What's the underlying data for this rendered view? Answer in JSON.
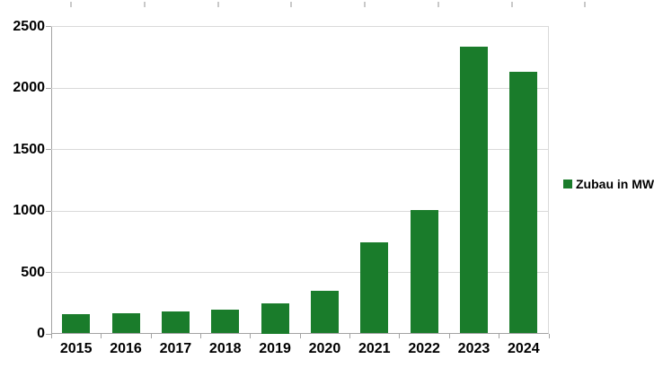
{
  "chart_data": {
    "type": "bar",
    "categories": [
      "2015",
      "2016",
      "2017",
      "2018",
      "2019",
      "2020",
      "2021",
      "2022",
      "2023",
      "2024"
    ],
    "series": [
      {
        "name": "Zubau in MW",
        "values": [
          160,
          170,
          185,
          195,
          250,
          350,
          745,
          1010,
          2335,
          2130
        ],
        "color": "#1a7c2b"
      }
    ],
    "xlabel": "",
    "ylabel": "",
    "ylim": [
      0,
      2500
    ],
    "yticks": [
      0,
      500,
      1000,
      1500,
      2000,
      2500
    ],
    "grid": "horizontal",
    "legend": {
      "label": "Zubau in MW",
      "position": "right",
      "swatch_color": "#1a7c2b"
    }
  },
  "colors": {
    "bar": "#1a7c2b",
    "gridline": "#d9d9d9",
    "axis": "#a3a3a3",
    "label_text": "#000000",
    "background": "#ffffff",
    "ruler_tick": "#c9c9c9"
  }
}
